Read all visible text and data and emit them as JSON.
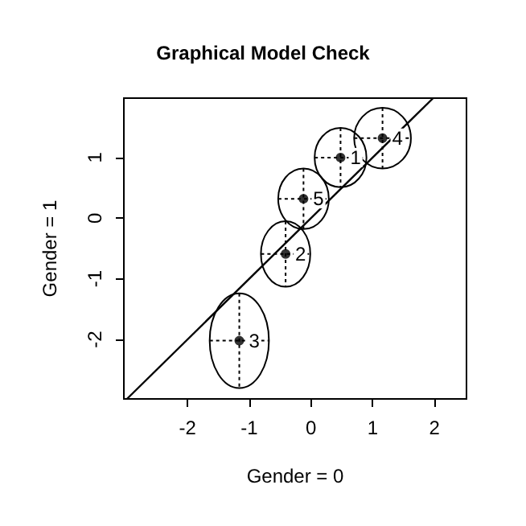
{
  "chart_data": {
    "type": "scatter",
    "title": "Graphical Model Check",
    "xlabel": "Gender = 0",
    "ylabel": "Gender = 1",
    "xlim": [
      -3.03,
      2.52
    ],
    "ylim": [
      -2.98,
      1.98
    ],
    "xticks": [
      -2,
      -1,
      0,
      1,
      2
    ],
    "yticks": [
      -2,
      -1,
      0,
      1
    ],
    "series": [
      {
        "marker": "circle",
        "color": "#000000",
        "x": [
          0.48,
          -0.41,
          -1.16,
          1.16,
          -0.12
        ],
        "values": [
          1.0,
          -0.59,
          -2.02,
          1.32,
          0.32
        ],
        "xerrors": [
          0.42,
          0.4,
          0.48,
          0.46,
          0.41
        ],
        "errors": [
          0.49,
          0.54,
          0.78,
          0.5,
          0.5
        ]
      },
      {
        "type": "line",
        "color": "#000000",
        "x": [
          -2.98,
          1.98
        ],
        "values": [
          -2.98,
          1.98
        ]
      }
    ],
    "annotations": [
      {
        "text": "1",
        "x": 0.48,
        "y": 1.0
      },
      {
        "text": "2",
        "x": -0.41,
        "y": -0.59
      },
      {
        "text": "3",
        "x": -1.16,
        "y": -2.02
      },
      {
        "text": "4",
        "x": 1.16,
        "y": 1.32
      },
      {
        "text": "5",
        "x": -0.12,
        "y": 0.32
      }
    ],
    "line_style": "solid",
    "grid": false
  }
}
